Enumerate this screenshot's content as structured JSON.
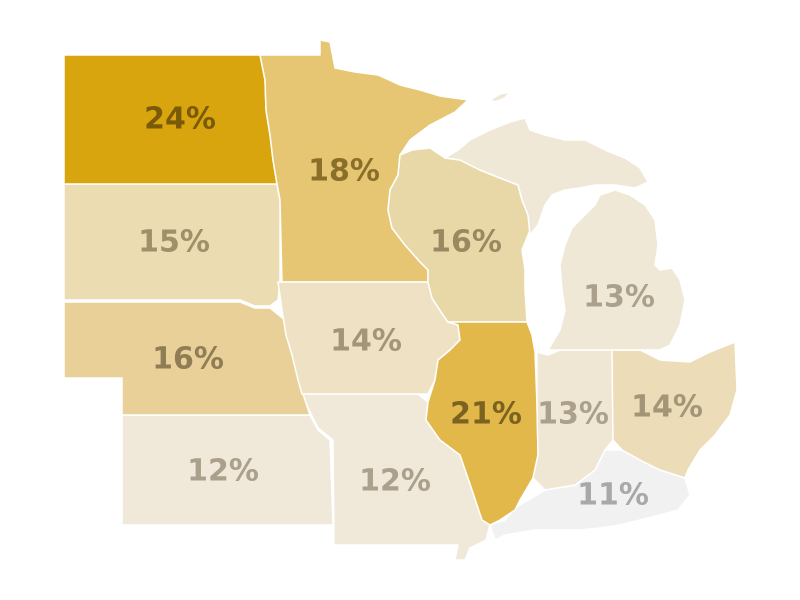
{
  "map": {
    "palette": {
      "lightest": "#f1f1f1",
      "light": "#efe6d4",
      "mid_light": "#ecdcb2",
      "mid": "#e8d098",
      "mid_dark": "#e6c673",
      "dark": "#e2b84a",
      "darkest": "#d9a50f"
    },
    "states": [
      {
        "id": "north-dakota",
        "value": "24%",
        "fill": "#d9a50f",
        "text_color": "#7a5a06"
      },
      {
        "id": "minnesota",
        "value": "18%",
        "fill": "#e6c673",
        "text_color": "#8a6f2a"
      },
      {
        "id": "south-dakota",
        "value": "15%",
        "fill": "#ecdcb2",
        "text_color": "#a0906a"
      },
      {
        "id": "wisconsin",
        "value": "16%",
        "fill": "#e8d8a8",
        "text_color": "#9a8860"
      },
      {
        "id": "nebraska",
        "value": "16%",
        "fill": "#e8d098",
        "text_color": "#8f7d55"
      },
      {
        "id": "iowa",
        "value": "14%",
        "fill": "#efe2c4",
        "text_color": "#a39578"
      },
      {
        "id": "illinois",
        "value": "21%",
        "fill": "#e2b84a",
        "text_color": "#7c6220"
      },
      {
        "id": "michigan",
        "value": "13%",
        "fill": "#f0e8d6",
        "text_color": "#aba08c"
      },
      {
        "id": "indiana",
        "value": "13%",
        "fill": "#efe6d4",
        "text_color": "#aba08c"
      },
      {
        "id": "ohio",
        "value": "14%",
        "fill": "#ecdcb8",
        "text_color": "#a39578"
      },
      {
        "id": "kansas",
        "value": "12%",
        "fill": "#f0e8d8",
        "text_color": "#aba08c"
      },
      {
        "id": "missouri",
        "value": "12%",
        "fill": "#f0e8d8",
        "text_color": "#aba08c"
      },
      {
        "id": "kentucky",
        "value": "11%",
        "fill": "#f1f1f1",
        "text_color": "#a8a8a8"
      }
    ]
  }
}
